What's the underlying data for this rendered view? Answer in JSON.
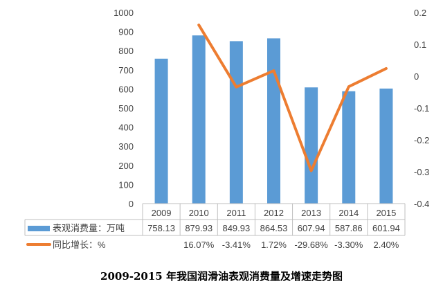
{
  "colors": {
    "bar": "#5B9BD5",
    "line": "#ED7D31",
    "grid": "#D9D9D9",
    "table_border": "#BFBFBF"
  },
  "caption": "2009-2015 年我国润滑油表观消费量及增速走势图",
  "chart_data": {
    "type": "bar",
    "categories": [
      "2009",
      "2010",
      "2011",
      "2012",
      "2013",
      "2014",
      "2015"
    ],
    "series": [
      {
        "name": "表观消费量：万吨",
        "type": "bar",
        "axis": "left",
        "values": [
          758.13,
          879.93,
          849.93,
          864.53,
          607.94,
          587.86,
          601.94
        ],
        "table_labels": [
          "758.13",
          "879.93",
          "849.93",
          "864.53",
          "607.94",
          "587.86",
          "601.94"
        ]
      },
      {
        "name": "同比增长：%",
        "type": "line",
        "axis": "right",
        "values": [
          null,
          0.1607,
          -0.0341,
          0.0172,
          -0.2968,
          -0.033,
          0.024
        ],
        "table_labels": [
          "",
          "16.07%",
          "-3.41%",
          "1.72%",
          "-29.68%",
          "-3.30%",
          "2.40%"
        ]
      }
    ],
    "y_left": {
      "min": 0,
      "max": 1000,
      "step": 100,
      "ticks": [
        "0",
        "100",
        "200",
        "300",
        "400",
        "500",
        "600",
        "700",
        "800",
        "900",
        "1000"
      ]
    },
    "y_right": {
      "min": -0.4,
      "max": 0.2,
      "step": 0.1,
      "ticks": [
        "-0.4",
        "-0.3",
        "-0.2",
        "-0.1",
        "0",
        "0.1",
        "0.2"
      ]
    },
    "grid": false,
    "legend": "data-table"
  }
}
